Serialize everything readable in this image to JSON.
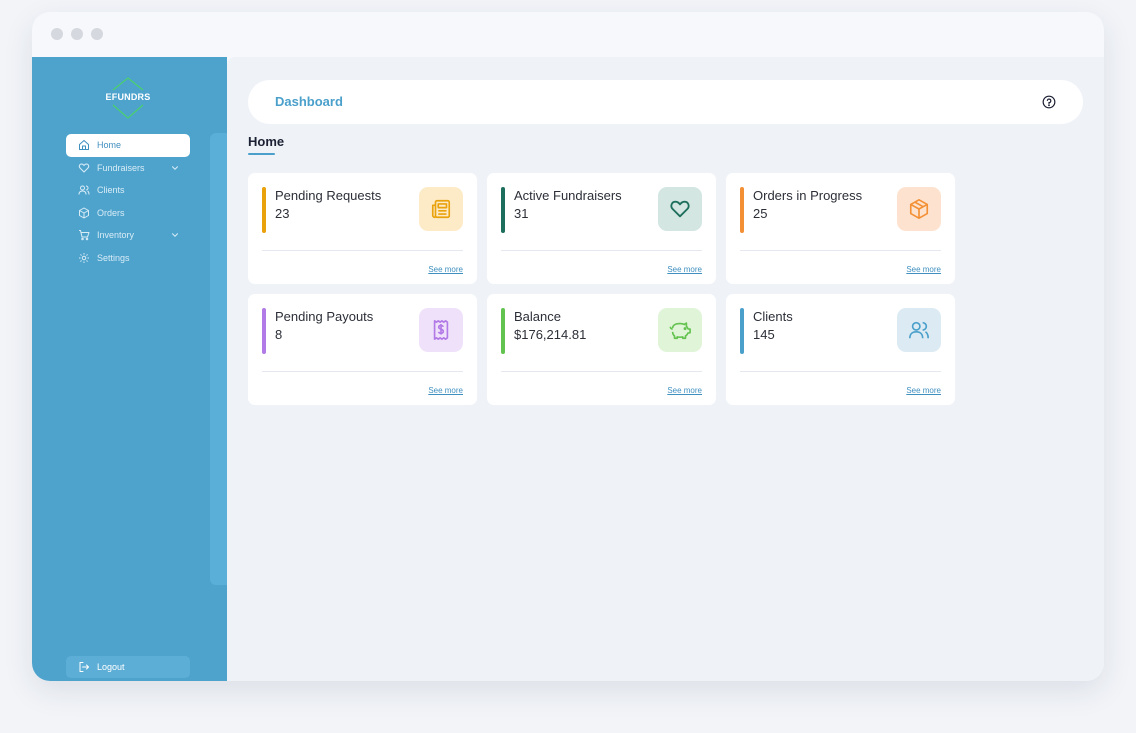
{
  "brand": {
    "name": "EFUNDRS"
  },
  "sidebar": {
    "items": [
      {
        "label": "Home",
        "icon": "home-icon",
        "active": true
      },
      {
        "label": "Fundraisers",
        "icon": "heart-icon",
        "has_submenu": true
      },
      {
        "label": "Clients",
        "icon": "users-icon"
      },
      {
        "label": "Orders",
        "icon": "box-icon"
      },
      {
        "label": "Inventory",
        "icon": "cart-icon",
        "has_submenu": true
      },
      {
        "label": "Settings",
        "icon": "gear-icon"
      }
    ],
    "logout_label": "Logout"
  },
  "header": {
    "title": "Dashboard",
    "help_icon": "help-icon"
  },
  "page": {
    "heading": "Home"
  },
  "cards": [
    {
      "label": "Pending Requests",
      "value": "23",
      "link": "See more",
      "accent": "#e9a20c",
      "icon": "newspaper-icon",
      "icon_bg": "#fdebc8",
      "icon_color": "#e9a20c"
    },
    {
      "label": "Active Fundraisers",
      "value": "31",
      "link": "See more",
      "accent": "#1d6e5c",
      "icon": "heart-icon",
      "icon_bg": "#d3e6e2",
      "icon_color": "#1d6e5c"
    },
    {
      "label": "Orders in Progress",
      "value": "25",
      "link": "See more",
      "accent": "#f39035",
      "icon": "box-icon",
      "icon_bg": "#fde3cf",
      "icon_color": "#f39035"
    },
    {
      "label": "Pending Payouts",
      "value": "8",
      "link": "See more",
      "accent": "#b27ae6",
      "icon": "dollar-receipt-icon",
      "icon_bg": "#f0e1fb",
      "icon_color": "#b27ae6"
    },
    {
      "label": "Balance",
      "value": "$176,214.81",
      "link": "See more",
      "accent": "#62c34e",
      "icon": "piggy-bank-icon",
      "icon_bg": "#e0f4d8",
      "icon_color": "#62c34e"
    },
    {
      "label": "Clients",
      "value": "145",
      "link": "See more",
      "accent": "#4aa0cb",
      "icon": "users-icon",
      "icon_bg": "#dcebf3",
      "icon_color": "#4aa0cb"
    }
  ]
}
